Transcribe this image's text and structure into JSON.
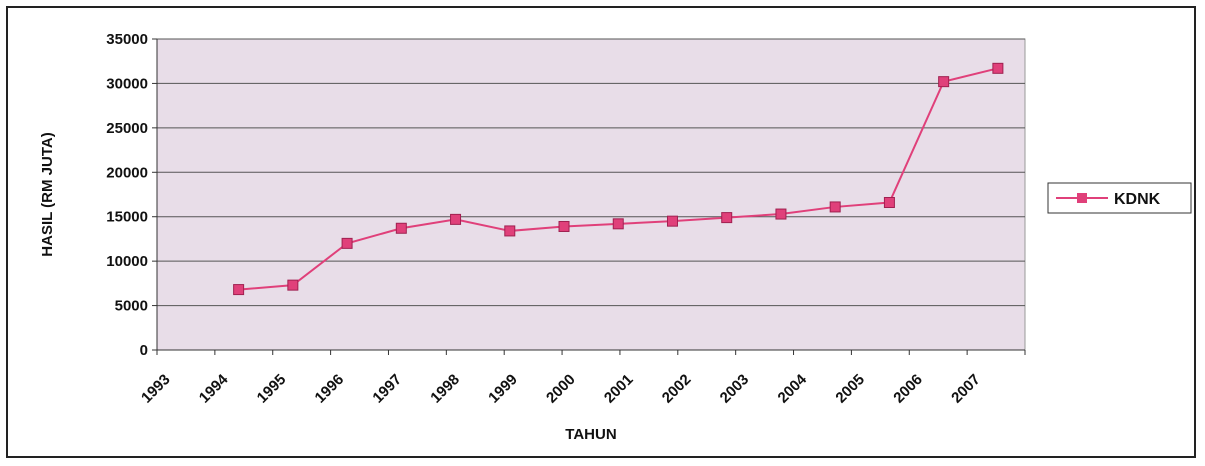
{
  "chart_data": {
    "type": "line",
    "title": "",
    "xlabel": "TAHUN",
    "ylabel": "HASIL (RM JUTA)",
    "categories": [
      "1993",
      "1994",
      "1995",
      "1996",
      "1997",
      "1998",
      "1999",
      "2000",
      "2001",
      "2002",
      "2003",
      "2004",
      "2005",
      "2006",
      "2007"
    ],
    "series": [
      {
        "name": "KDNK",
        "color": "#e0407a",
        "values": [
          6800,
          7300,
          12000,
          13700,
          14700,
          13400,
          13900,
          14200,
          14500,
          14900,
          15300,
          16100,
          16600,
          30200,
          31700
        ]
      }
    ],
    "ylim": [
      0,
      35000
    ],
    "yticks": [
      0,
      5000,
      10000,
      15000,
      20000,
      25000,
      30000,
      35000
    ],
    "grid": true,
    "legend": "right",
    "plot_background": "#e8dde8"
  }
}
